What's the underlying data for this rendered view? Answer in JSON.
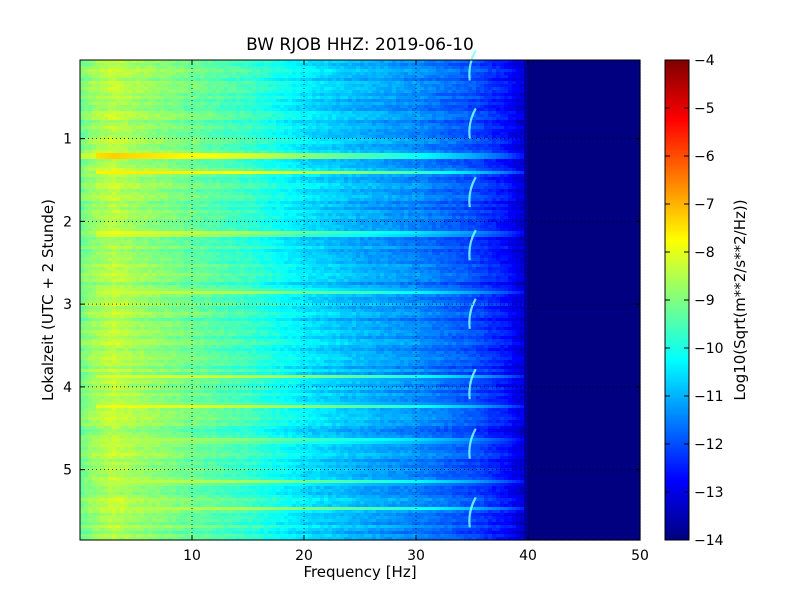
{
  "chart_data": {
    "type": "heatmap",
    "title": "BW RJOB HHZ: 2019-06-10",
    "xlabel": "Frequency [Hz]",
    "ylabel": "Lokalzeit (UTC + 2 Stunde)",
    "colorbar_label": "Log10(Sqrt(m**2/s**2/Hz))",
    "xlim": [
      0,
      50
    ],
    "ylim": [
      5.85,
      0.05
    ],
    "x_ticks": [
      10,
      20,
      30,
      40,
      50
    ],
    "x_tick_labels": [
      "10",
      "20",
      "30",
      "40",
      "50"
    ],
    "y_ticks": [
      1,
      2,
      3,
      4,
      5
    ],
    "y_tick_labels": [
      "1",
      "2",
      "3",
      "4",
      "5"
    ],
    "colorbar_ticks": [
      -4,
      -5,
      -6,
      -7,
      -8,
      -9,
      -10,
      -11,
      -12,
      -13,
      -14
    ],
    "colorbar_tick_labels": [
      "−4",
      "−5",
      "−6",
      "−7",
      "−8",
      "−9",
      "−10",
      "−11",
      "−12",
      "−13",
      "−14"
    ],
    "clim": [
      -14,
      -4
    ],
    "colormap": "jet",
    "grid": true,
    "frequency_profile": {
      "freq_hz": [
        0,
        1,
        3,
        5,
        10,
        15,
        20,
        25,
        30,
        35,
        38,
        39.5,
        40,
        50
      ],
      "log10_psd": [
        -9.2,
        -8.8,
        -8.4,
        -8.7,
        -9.2,
        -9.7,
        -10.5,
        -11.0,
        -11.4,
        -12.0,
        -12.6,
        -13.2,
        -14.0,
        -14.0
      ]
    },
    "bright_bands": [
      {
        "time": 1.21,
        "peak": -6.0
      },
      {
        "time": 1.41,
        "peak": -7.7
      },
      {
        "time": 2.15,
        "peak": -7.6
      },
      {
        "time": 2.85,
        "peak": -8.3
      },
      {
        "time": 3.88,
        "peak": -8.2
      },
      {
        "time": 4.23,
        "peak": -7.9
      },
      {
        "time": 4.65,
        "peak": -8.6
      },
      {
        "time": 5.15,
        "peak": -8.6
      },
      {
        "time": 5.47,
        "peak": -8.8
      }
    ],
    "hooks_frequency_hz": 34.8,
    "hooks_times": [
      0.25,
      0.95,
      1.78,
      2.42,
      3.25,
      4.1,
      4.82,
      5.65
    ]
  }
}
